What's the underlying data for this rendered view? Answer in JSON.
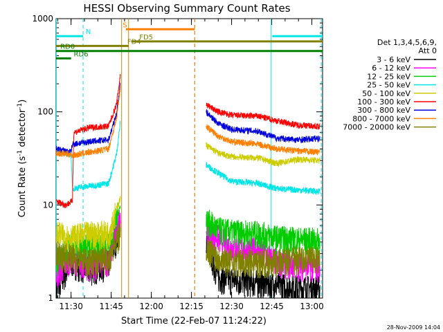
{
  "chart_data": {
    "type": "line",
    "title": "HESSI Observing Summary Count Rates",
    "xlabel": "Start Time (22-Feb-07 11:24:22)",
    "ylabel": "Count Rate (s^-1 detector^-1)",
    "ylabel_main": "Count Rate (s",
    "ylabel_sup1": "-1",
    "ylabel_mid": " detector",
    "ylabel_sup2": "-1",
    "ylabel_end": ")",
    "yscale": "log",
    "ylim": [
      1,
      1000
    ],
    "xlim_minutes": [
      684.4,
      784.0
    ],
    "x_ticks": [
      {
        "label": "11:30",
        "minute": 690
      },
      {
        "label": "11:45",
        "minute": 705
      },
      {
        "label": "12:00",
        "minute": 720
      },
      {
        "label": "12:15",
        "minute": 735
      },
      {
        "label": "12:30",
        "minute": 750
      },
      {
        "label": "12:45",
        "minute": 765
      },
      {
        "label": "13:00",
        "minute": 780
      }
    ],
    "y_ticks": [
      {
        "label": "1",
        "value": 1
      },
      {
        "label": "10",
        "value": 10
      },
      {
        "label": "100",
        "value": 100
      },
      {
        "label": "1000",
        "value": 1000
      }
    ],
    "legend": {
      "header_line1": "Det 1,3,4,5,6,9,",
      "header_line2": "Att 0",
      "placement": "right"
    },
    "series": [
      {
        "name": "3 - 6 keV",
        "color": "#000000",
        "segments": [
          {
            "x": [
              684.5,
              690,
              697,
              704,
              708.5
            ],
            "y": [
              1.2,
              2.5,
              2.0,
              2.4,
              6
            ]
          },
          {
            "x": [
              740.5,
              742,
              745,
              750,
              760,
              767,
              775,
              783
            ],
            "y": [
              4.5,
              3.0,
              1.7,
              1.6,
              1.5,
              1.4,
              1.3,
              1.3
            ]
          }
        ]
      },
      {
        "name": "6 - 12 keV",
        "color": "#ff00ff",
        "segments": [
          {
            "x": [
              684.5,
              690,
              697,
              704,
              708.5
            ],
            "y": [
              1.8,
              2.8,
              2.2,
              2.6,
              8
            ]
          },
          {
            "x": [
              740.5,
              745,
              750,
              760,
              767,
              775,
              783
            ],
            "y": [
              5.5,
              4.5,
              3.5,
              3.3,
              2.5,
              2.3,
              2.2
            ]
          }
        ]
      },
      {
        "name": "12 - 25 keV",
        "color": "#00cc00",
        "segments": [
          {
            "x": [
              684.5,
              690,
              697,
              704,
              708.5
            ],
            "y": [
              2.5,
              4.0,
              3.5,
              3.8,
              10
            ]
          },
          {
            "x": [
              740.5,
              745,
              750,
              760,
              767,
              775,
              783
            ],
            "y": [
              7.0,
              5.5,
              5.2,
              5.0,
              4.5,
              4.3,
              4.2
            ]
          }
        ]
      },
      {
        "name": "25 - 50 keV",
        "color": "#00e5e5",
        "segments": [
          {
            "x": [
              684.5,
              690,
              690.5,
              697,
              704,
              707,
              708.5
            ],
            "y": [
              38,
              35,
              15,
              16,
              17,
              35,
              80
            ]
          },
          {
            "x": [
              740.5,
              745,
              750,
              760,
              767,
              775,
              783
            ],
            "y": [
              27,
              22,
              18,
              17,
              15,
              14.5,
              14
            ]
          }
        ]
      },
      {
        "name": "50 - 100 keV",
        "color": "#cccc00",
        "segments": [
          {
            "x": [
              684.5,
              690,
              697,
              704,
              708.5
            ],
            "y": [
              5,
              4.5,
              5,
              5,
              12
            ]
          },
          {
            "x": [
              740.5,
              745,
              750,
              760,
              767,
              775,
              783
            ],
            "y": [
              44,
              36,
              33,
              32,
              28,
              31,
              30
            ]
          }
        ]
      },
      {
        "name": "100 - 300 keV",
        "color": "#ff0000",
        "segments": [
          {
            "x": [
              684.5,
              688,
              690.5,
              691,
              697,
              704,
              707,
              708.5
            ],
            "y": [
              11,
              10,
              11,
              60,
              68,
              70,
              120,
              260
            ]
          },
          {
            "x": [
              740.5,
              745,
              750,
              760,
              767,
              775,
              783
            ],
            "y": [
              120,
              100,
              92,
              90,
              80,
              72,
              70
            ]
          }
        ]
      },
      {
        "name": "300 - 800 keV",
        "color": "#0000dd",
        "segments": [
          {
            "x": [
              684.5,
              690,
              690.5,
              697,
              704,
              707,
              708.5
            ],
            "y": [
              40,
              37,
              45,
              48,
              50,
              95,
              210
            ]
          },
          {
            "x": [
              740.5,
              745,
              750,
              760,
              767,
              775,
              783
            ],
            "y": [
              100,
              75,
              65,
              62,
              52,
              50,
              52
            ]
          }
        ]
      },
      {
        "name": "800 - 7000 keV",
        "color": "#ff7f00",
        "segments": [
          {
            "x": [
              684.5,
              690,
              690.5,
              697,
              704,
              707,
              708.5
            ],
            "y": [
              36,
              35,
              34,
              37,
              40,
              85,
              190
            ]
          },
          {
            "x": [
              740.5,
              745,
              750,
              760,
              767,
              775,
              783
            ],
            "y": [
              70,
              55,
              48,
              45,
              40,
              38,
              37
            ]
          }
        ]
      },
      {
        "name": "7000 - 20000 keV",
        "color": "#808000",
        "segments": [
          {
            "x": [
              684.5,
              690,
              697,
              704,
              708.5
            ],
            "y": [
              3.0,
              2.8,
              2.5,
              2.7,
              5
            ]
          },
          {
            "x": [
              740.5,
              745,
              750,
              760,
              767,
              775,
              783
            ],
            "y": [
              3.5,
              2.8,
              2.5,
              2.5,
              2.5,
              2.7,
              2.6
            ]
          }
        ]
      }
    ],
    "flag_bars": [
      {
        "label": "N",
        "color": "#00e5e5",
        "value": 650,
        "dashed": false,
        "x_start": 684.4,
        "x_end": 694.5,
        "label_x": 695.5
      },
      {
        "label": "N",
        "color": "#00e5e5",
        "value": 650,
        "dashed": false,
        "x_start": 765.2,
        "x_end": 784.0,
        "label_x": null
      },
      {
        "label": "S",
        "color": "#ff7f00",
        "value": 770,
        "dashed": false,
        "x_start": 710.5,
        "x_end": 736.2,
        "label_x": 709.3
      },
      {
        "label": "FD4",
        "color": "#808000",
        "value": 510,
        "dashed": false,
        "x_start": 684.4,
        "x_end": 711.5,
        "label_x": 711.0
      },
      {
        "label": "FD5",
        "color": "#808000",
        "value": 570,
        "dashed": false,
        "x_start": 712.5,
        "x_end": 784.0,
        "label_x": 715.5
      },
      {
        "label": "RD0",
        "color": "#008000",
        "value": 450,
        "dashed": false,
        "x_start": 684.4,
        "x_end": 784.0,
        "label_x": 686.0
      },
      {
        "label": "RD6",
        "color": "#008000",
        "value": 375,
        "dashed": false,
        "x_start": 684.4,
        "x_end": 690.0,
        "label_x": 691.0
      }
    ],
    "vlines": [
      {
        "minute": 684.5,
        "color": "#00e5e5",
        "dashed": false
      },
      {
        "minute": 694.5,
        "color": "#00e5e5",
        "dashed": true
      },
      {
        "minute": 708.9,
        "color": "#cc8800",
        "dashed": false
      },
      {
        "minute": 711.5,
        "color": "#cc8800",
        "dashed": false
      },
      {
        "minute": 736.2,
        "color": "#cc6600",
        "dashed": true
      },
      {
        "minute": 764.8,
        "color": "#00e5e5",
        "dashed": false
      },
      {
        "minute": 783.5,
        "color": "#00e5e5",
        "dashed": true
      }
    ],
    "timestamp": "28-Nov-2009 14:04"
  }
}
